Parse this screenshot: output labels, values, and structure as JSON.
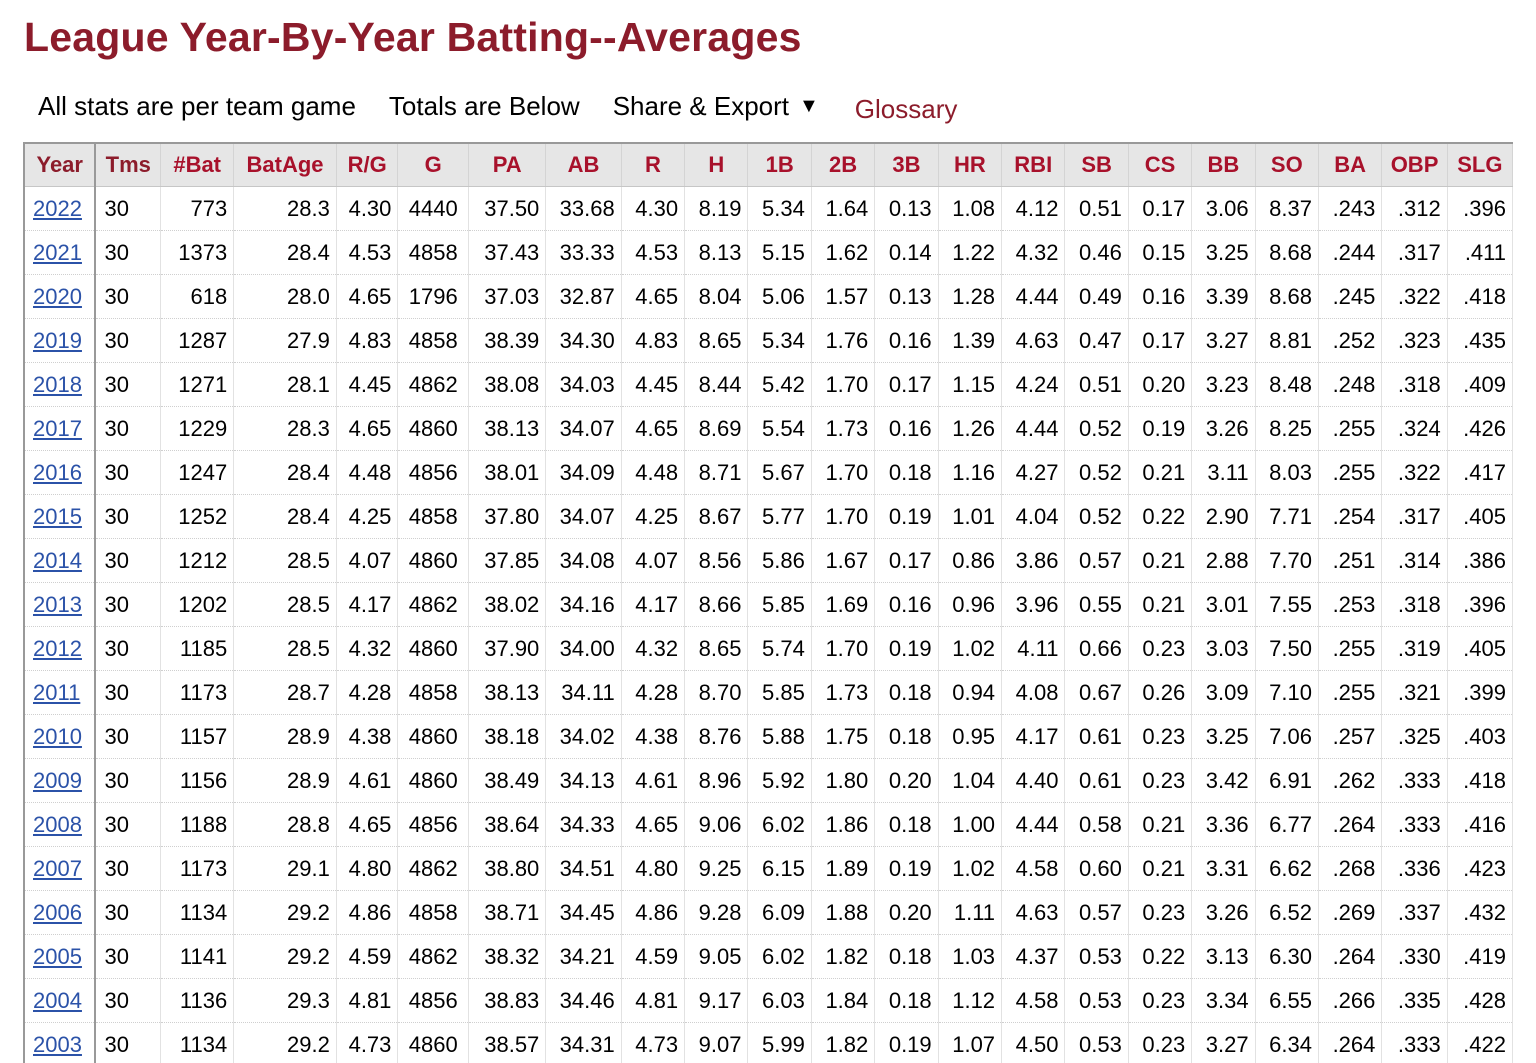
{
  "title": "League Year-By-Year Batting--Averages",
  "toolbar": {
    "per_game_note": "All stats are per team game",
    "totals_note": "Totals are Below",
    "share_export": "Share & Export",
    "share_caret": "▼",
    "glossary": "Glossary"
  },
  "table": {
    "headers": [
      "Year",
      "Tms",
      "#Bat",
      "BatAge",
      "R/G",
      "G",
      "PA",
      "AB",
      "R",
      "H",
      "1B",
      "2B",
      "3B",
      "HR",
      "RBI",
      "SB",
      "CS",
      "BB",
      "SO",
      "BA",
      "OBP",
      "SLG"
    ],
    "rows": [
      [
        "2022",
        "30",
        "773",
        "28.3",
        "4.30",
        "4440",
        "37.50",
        "33.68",
        "4.30",
        "8.19",
        "5.34",
        "1.64",
        "0.13",
        "1.08",
        "4.12",
        "0.51",
        "0.17",
        "3.06",
        "8.37",
        ".243",
        ".312",
        ".396"
      ],
      [
        "2021",
        "30",
        "1373",
        "28.4",
        "4.53",
        "4858",
        "37.43",
        "33.33",
        "4.53",
        "8.13",
        "5.15",
        "1.62",
        "0.14",
        "1.22",
        "4.32",
        "0.46",
        "0.15",
        "3.25",
        "8.68",
        ".244",
        ".317",
        ".411"
      ],
      [
        "2020",
        "30",
        "618",
        "28.0",
        "4.65",
        "1796",
        "37.03",
        "32.87",
        "4.65",
        "8.04",
        "5.06",
        "1.57",
        "0.13",
        "1.28",
        "4.44",
        "0.49",
        "0.16",
        "3.39",
        "8.68",
        ".245",
        ".322",
        ".418"
      ],
      [
        "2019",
        "30",
        "1287",
        "27.9",
        "4.83",
        "4858",
        "38.39",
        "34.30",
        "4.83",
        "8.65",
        "5.34",
        "1.76",
        "0.16",
        "1.39",
        "4.63",
        "0.47",
        "0.17",
        "3.27",
        "8.81",
        ".252",
        ".323",
        ".435"
      ],
      [
        "2018",
        "30",
        "1271",
        "28.1",
        "4.45",
        "4862",
        "38.08",
        "34.03",
        "4.45",
        "8.44",
        "5.42",
        "1.70",
        "0.17",
        "1.15",
        "4.24",
        "0.51",
        "0.20",
        "3.23",
        "8.48",
        ".248",
        ".318",
        ".409"
      ],
      [
        "2017",
        "30",
        "1229",
        "28.3",
        "4.65",
        "4860",
        "38.13",
        "34.07",
        "4.65",
        "8.69",
        "5.54",
        "1.73",
        "0.16",
        "1.26",
        "4.44",
        "0.52",
        "0.19",
        "3.26",
        "8.25",
        ".255",
        ".324",
        ".426"
      ],
      [
        "2016",
        "30",
        "1247",
        "28.4",
        "4.48",
        "4856",
        "38.01",
        "34.09",
        "4.48",
        "8.71",
        "5.67",
        "1.70",
        "0.18",
        "1.16",
        "4.27",
        "0.52",
        "0.21",
        "3.11",
        "8.03",
        ".255",
        ".322",
        ".417"
      ],
      [
        "2015",
        "30",
        "1252",
        "28.4",
        "4.25",
        "4858",
        "37.80",
        "34.07",
        "4.25",
        "8.67",
        "5.77",
        "1.70",
        "0.19",
        "1.01",
        "4.04",
        "0.52",
        "0.22",
        "2.90",
        "7.71",
        ".254",
        ".317",
        ".405"
      ],
      [
        "2014",
        "30",
        "1212",
        "28.5",
        "4.07",
        "4860",
        "37.85",
        "34.08",
        "4.07",
        "8.56",
        "5.86",
        "1.67",
        "0.17",
        "0.86",
        "3.86",
        "0.57",
        "0.21",
        "2.88",
        "7.70",
        ".251",
        ".314",
        ".386"
      ],
      [
        "2013",
        "30",
        "1202",
        "28.5",
        "4.17",
        "4862",
        "38.02",
        "34.16",
        "4.17",
        "8.66",
        "5.85",
        "1.69",
        "0.16",
        "0.96",
        "3.96",
        "0.55",
        "0.21",
        "3.01",
        "7.55",
        ".253",
        ".318",
        ".396"
      ],
      [
        "2012",
        "30",
        "1185",
        "28.5",
        "4.32",
        "4860",
        "37.90",
        "34.00",
        "4.32",
        "8.65",
        "5.74",
        "1.70",
        "0.19",
        "1.02",
        "4.11",
        "0.66",
        "0.23",
        "3.03",
        "7.50",
        ".255",
        ".319",
        ".405"
      ],
      [
        "2011",
        "30",
        "1173",
        "28.7",
        "4.28",
        "4858",
        "38.13",
        "34.11",
        "4.28",
        "8.70",
        "5.85",
        "1.73",
        "0.18",
        "0.94",
        "4.08",
        "0.67",
        "0.26",
        "3.09",
        "7.10",
        ".255",
        ".321",
        ".399"
      ],
      [
        "2010",
        "30",
        "1157",
        "28.9",
        "4.38",
        "4860",
        "38.18",
        "34.02",
        "4.38",
        "8.76",
        "5.88",
        "1.75",
        "0.18",
        "0.95",
        "4.17",
        "0.61",
        "0.23",
        "3.25",
        "7.06",
        ".257",
        ".325",
        ".403"
      ],
      [
        "2009",
        "30",
        "1156",
        "28.9",
        "4.61",
        "4860",
        "38.49",
        "34.13",
        "4.61",
        "8.96",
        "5.92",
        "1.80",
        "0.20",
        "1.04",
        "4.40",
        "0.61",
        "0.23",
        "3.42",
        "6.91",
        ".262",
        ".333",
        ".418"
      ],
      [
        "2008",
        "30",
        "1188",
        "28.8",
        "4.65",
        "4856",
        "38.64",
        "34.33",
        "4.65",
        "9.06",
        "6.02",
        "1.86",
        "0.18",
        "1.00",
        "4.44",
        "0.58",
        "0.21",
        "3.36",
        "6.77",
        ".264",
        ".333",
        ".416"
      ],
      [
        "2007",
        "30",
        "1173",
        "29.1",
        "4.80",
        "4862",
        "38.80",
        "34.51",
        "4.80",
        "9.25",
        "6.15",
        "1.89",
        "0.19",
        "1.02",
        "4.58",
        "0.60",
        "0.21",
        "3.31",
        "6.62",
        ".268",
        ".336",
        ".423"
      ],
      [
        "2006",
        "30",
        "1134",
        "29.2",
        "4.86",
        "4858",
        "38.71",
        "34.45",
        "4.86",
        "9.28",
        "6.09",
        "1.88",
        "0.20",
        "1.11",
        "4.63",
        "0.57",
        "0.23",
        "3.26",
        "6.52",
        ".269",
        ".337",
        ".432"
      ],
      [
        "2005",
        "30",
        "1141",
        "29.2",
        "4.59",
        "4862",
        "38.32",
        "34.21",
        "4.59",
        "9.05",
        "6.02",
        "1.82",
        "0.18",
        "1.03",
        "4.37",
        "0.53",
        "0.22",
        "3.13",
        "6.30",
        ".264",
        ".330",
        ".419"
      ],
      [
        "2004",
        "30",
        "1136",
        "29.3",
        "4.81",
        "4856",
        "38.83",
        "34.46",
        "4.81",
        "9.17",
        "6.03",
        "1.84",
        "0.18",
        "1.12",
        "4.58",
        "0.53",
        "0.23",
        "3.34",
        "6.55",
        ".266",
        ".335",
        ".428"
      ],
      [
        "2003",
        "30",
        "1134",
        "29.2",
        "4.73",
        "4860",
        "38.57",
        "34.31",
        "4.73",
        "9.07",
        "5.99",
        "1.82",
        "0.19",
        "1.07",
        "4.50",
        "0.53",
        "0.23",
        "3.27",
        "6.34",
        ".264",
        ".333",
        ".422"
      ]
    ]
  },
  "colors": {
    "title": "#8c1c2b",
    "header_text": "#a8112b",
    "header_bg": "#e6e6e6",
    "link": "#2b52a8"
  }
}
